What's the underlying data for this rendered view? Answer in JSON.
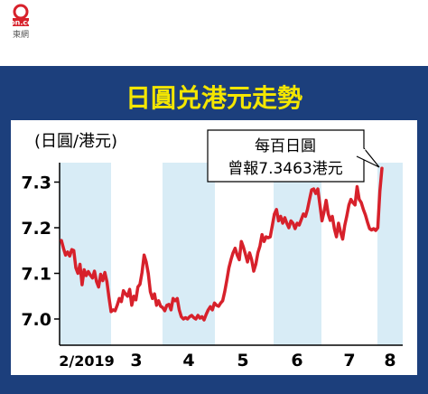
{
  "logo": {
    "top_text": "on.cc",
    "bottom_text": "東網"
  },
  "colors": {
    "navy": "#1c3f7c",
    "line": "#d7212b",
    "band": "#d8ecf6",
    "title": "#f4e600",
    "axis": "#000000"
  },
  "chart_data": {
    "type": "line",
    "title": "日圓兑港元走勢",
    "unit_label": "(日圓/港元)",
    "annotation": {
      "line1": "每百日圓",
      "line2": "曾報7.3463港元"
    },
    "ylim": [
      6.97,
      7.33
    ],
    "yticks": [
      {
        "value": 7.0,
        "label": "7.0"
      },
      {
        "value": 7.1,
        "label": "7.1"
      },
      {
        "value": 7.2,
        "label": "7.2"
      },
      {
        "value": 7.3,
        "label": "7.3"
      }
    ],
    "month_labels": [
      "2/2019",
      "3",
      "4",
      "5",
      "6",
      "7",
      "8"
    ],
    "series": [
      {
        "values": [
          7.172,
          7.155,
          7.14,
          7.147,
          7.138,
          7.152,
          7.15,
          7.112,
          7.1,
          7.12,
          7.075,
          7.108,
          7.095,
          7.104,
          7.096,
          7.09,
          7.105,
          7.082,
          7.07,
          7.098,
          7.084,
          7.102,
          7.082,
          7.047,
          7.016,
          7.02,
          7.018,
          7.03,
          7.045,
          7.038,
          7.062,
          7.055,
          7.05,
          7.065,
          7.03,
          7.05,
          7.042,
          7.07,
          7.076,
          7.102,
          7.14,
          7.125,
          7.1,
          7.06,
          7.045,
          7.055,
          7.03,
          7.04,
          7.028,
          7.025,
          7.018,
          7.03,
          7.032,
          7.02,
          7.045,
          7.04,
          7.045,
          7.02,
          7.005,
          7.0,
          7.003,
          7.0,
          7.005,
          7.008,
          7.003,
          7.0,
          7.008,
          7.002,
          7.005,
          6.998,
          7.01,
          7.02,
          7.027,
          7.02,
          7.035,
          7.03,
          7.028,
          7.035,
          7.04,
          7.06,
          7.085,
          7.112,
          7.13,
          7.145,
          7.155,
          7.14,
          7.13,
          7.17,
          7.158,
          7.142,
          7.125,
          7.145,
          7.13,
          7.105,
          7.12,
          7.145,
          7.16,
          7.185,
          7.17,
          7.18,
          7.178,
          7.18,
          7.205,
          7.23,
          7.24,
          7.215,
          7.225,
          7.21,
          7.222,
          7.21,
          7.2,
          7.215,
          7.21,
          7.198,
          7.21,
          7.206,
          7.218,
          7.23,
          7.225,
          7.24,
          7.262,
          7.283,
          7.285,
          7.275,
          7.285,
          7.25,
          7.215,
          7.235,
          7.26,
          7.23,
          7.216,
          7.225,
          7.198,
          7.18,
          7.21,
          7.19,
          7.175,
          7.205,
          7.226,
          7.25,
          7.262,
          7.255,
          7.25,
          7.29,
          7.262,
          7.255,
          7.24,
          7.228,
          7.212,
          7.198,
          7.195,
          7.198,
          7.194,
          7.2,
          7.28,
          7.33
        ]
      }
    ]
  }
}
